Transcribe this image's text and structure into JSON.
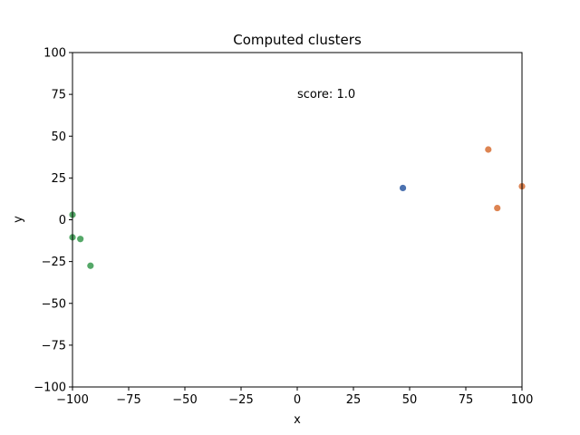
{
  "chart_data": {
    "type": "scatter",
    "title": "Computed clusters",
    "xlabel": "x",
    "ylabel": "y",
    "xlim": [
      -100,
      100
    ],
    "ylim": [
      -100,
      100
    ],
    "xticks": [
      -100,
      -75,
      -50,
      -25,
      0,
      25,
      50,
      75,
      100
    ],
    "yticks": [
      -100,
      -75,
      -50,
      -25,
      0,
      25,
      50,
      75,
      100
    ],
    "grid": false,
    "annotation": {
      "text": "score: 1.0",
      "x": 0,
      "y": 75
    },
    "clusters": [
      {
        "color": "#4c72b0",
        "points": [
          [
            47,
            19
          ]
        ]
      },
      {
        "color": "#dd8452",
        "points": [
          [
            85,
            42
          ],
          [
            89,
            7
          ],
          [
            100,
            20
          ]
        ]
      },
      {
        "color": "#55a868",
        "points": [
          [
            -100,
            3
          ],
          [
            -100,
            -10.5
          ],
          [
            -96.5,
            -11.5
          ],
          [
            -92,
            -27.5
          ]
        ]
      }
    ]
  }
}
